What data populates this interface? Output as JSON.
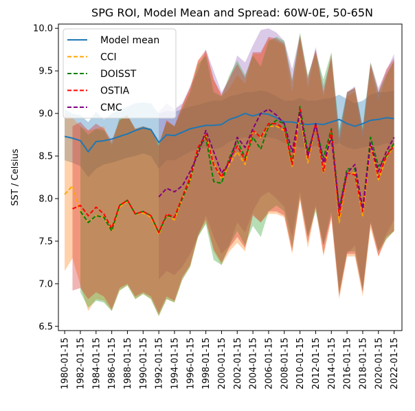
{
  "chart_data": {
    "type": "line",
    "title": "SPG ROI, Model Mean and Spread: 60W-0E, 50-65N",
    "xlabel": "",
    "ylabel": "SST / Celsius",
    "ylim": [
      6.45,
      10.05
    ],
    "xlim": [
      1979.2,
      2023.0
    ],
    "yticks": [
      6.5,
      7.0,
      7.5,
      8.0,
      8.5,
      9.0,
      9.5,
      10.0
    ],
    "ytick_labels": [
      "6.5",
      "7.0",
      "7.5",
      "8.0",
      "8.5",
      "9.0",
      "9.5",
      "10.0"
    ],
    "xticks": [
      1980,
      1982,
      1984,
      1986,
      1988,
      1990,
      1992,
      1994,
      1996,
      1998,
      2000,
      2002,
      2004,
      2006,
      2008,
      2010,
      2012,
      2014,
      2016,
      2018,
      2020,
      2022
    ],
    "xtick_labels": [
      "1980-01-15",
      "1982-01-15",
      "1984-01-15",
      "1986-01-15",
      "1988-01-15",
      "1990-01-15",
      "1992-01-15",
      "1994-01-15",
      "1996-01-15",
      "1998-01-15",
      "2000-01-15",
      "2002-01-15",
      "2004-01-15",
      "2006-01-15",
      "2008-01-15",
      "2010-01-15",
      "2012-01-15",
      "2014-01-15",
      "2016-01-15",
      "2018-01-15",
      "2020-01-15",
      "2022-01-15"
    ],
    "legend": {
      "position": "top-left"
    },
    "series": [
      {
        "name": "Model mean",
        "color": "#1f77b4",
        "style": "solid",
        "band_color": "#1f77b4",
        "x": [
          1980,
          1981,
          1982,
          1983,
          1984,
          1985,
          1986,
          1987,
          1988,
          1989,
          1990,
          1991,
          1992,
          1993,
          1994,
          1995,
          1996,
          1997,
          1998,
          1999,
          2000,
          2001,
          2002,
          2003,
          2004,
          2005,
          2006,
          2007,
          2008,
          2009,
          2010,
          2011,
          2012,
          2013,
          2014,
          2015,
          2016,
          2017,
          2018,
          2019,
          2020,
          2021,
          2022
        ],
        "values": [
          8.73,
          8.71,
          8.68,
          8.55,
          8.67,
          8.68,
          8.7,
          8.73,
          8.76,
          8.8,
          8.83,
          8.81,
          8.66,
          8.75,
          8.74,
          8.78,
          8.82,
          8.84,
          8.86,
          8.86,
          8.87,
          8.93,
          8.96,
          9.0,
          8.97,
          9.0,
          8.99,
          8.95,
          8.9,
          8.9,
          8.88,
          8.87,
          8.88,
          8.87,
          8.9,
          8.93,
          8.88,
          8.85,
          8.88,
          8.92,
          8.93,
          8.95,
          8.94
        ],
        "upper": [
          9.05,
          9.0,
          8.98,
          8.9,
          9.02,
          8.93,
          9.0,
          9.05,
          9.08,
          9.12,
          9.13,
          9.12,
          9.0,
          9.03,
          9.02,
          9.05,
          9.08,
          9.1,
          9.13,
          9.15,
          9.15,
          9.2,
          9.22,
          9.25,
          9.25,
          9.27,
          9.25,
          9.2,
          9.15,
          9.15,
          9.18,
          9.15,
          9.15,
          9.17,
          9.18,
          9.22,
          9.17,
          9.12,
          9.15,
          9.22,
          9.25,
          9.25,
          9.27
        ],
        "lower": [
          8.45,
          8.42,
          8.38,
          8.25,
          8.35,
          8.4,
          8.42,
          8.45,
          8.48,
          8.5,
          8.53,
          8.5,
          8.35,
          8.45,
          8.45,
          8.5,
          8.55,
          8.58,
          8.6,
          8.58,
          8.6,
          8.67,
          8.7,
          8.72,
          8.7,
          8.72,
          8.72,
          8.7,
          8.65,
          8.65,
          8.6,
          8.6,
          8.62,
          8.58,
          8.62,
          8.65,
          8.6,
          8.58,
          8.6,
          8.62,
          8.62,
          8.65,
          8.62
        ]
      },
      {
        "name": "CCI",
        "color": "#ffa500",
        "style": "dashed",
        "band_color": "#ff7f0e",
        "x": [
          1980,
          1981,
          1982,
          1983,
          1984,
          1985,
          1986,
          1987,
          1988,
          1989,
          1990,
          1991,
          1992,
          1993,
          1994,
          1995,
          1996,
          1997,
          1998,
          1999,
          2000,
          2001,
          2002,
          2003,
          2004,
          2005,
          2006,
          2007,
          2008,
          2009,
          2010,
          2011,
          2012,
          2013,
          2014,
          2015,
          2016,
          2017,
          2018,
          2019,
          2020,
          2021,
          2022
        ],
        "values": [
          8.05,
          8.15,
          7.85,
          7.72,
          7.8,
          7.78,
          7.62,
          7.9,
          7.97,
          7.82,
          7.83,
          7.78,
          7.58,
          7.8,
          7.75,
          8.0,
          8.22,
          8.58,
          8.75,
          8.42,
          8.23,
          8.4,
          8.55,
          8.4,
          8.8,
          8.72,
          8.85,
          8.85,
          8.8,
          8.38,
          9.0,
          8.42,
          8.88,
          8.3,
          8.78,
          7.72,
          8.3,
          8.3,
          7.8,
          8.65,
          8.22,
          8.48,
          8.62
        ],
        "upper": [
          9.0,
          8.95,
          8.85,
          8.8,
          8.82,
          8.85,
          8.62,
          8.92,
          8.98,
          8.8,
          8.82,
          8.82,
          8.62,
          8.92,
          8.85,
          9.1,
          9.3,
          9.62,
          9.72,
          9.4,
          9.2,
          9.3,
          9.45,
          9.35,
          9.7,
          9.7,
          9.88,
          9.85,
          9.8,
          9.25,
          9.9,
          9.3,
          9.75,
          9.2,
          9.65,
          8.6,
          9.2,
          9.25,
          8.7,
          9.55,
          9.15,
          9.45,
          9.62
        ],
        "lower": [
          7.15,
          7.3,
          6.98,
          6.68,
          6.82,
          6.8,
          6.68,
          6.92,
          6.98,
          6.82,
          6.88,
          6.82,
          6.62,
          6.82,
          6.78,
          7.05,
          7.2,
          7.55,
          7.72,
          7.38,
          7.22,
          7.38,
          7.48,
          7.38,
          7.82,
          7.72,
          7.82,
          7.82,
          7.78,
          7.35,
          7.98,
          7.42,
          7.88,
          7.32,
          7.75,
          6.82,
          7.32,
          7.32,
          6.85,
          7.65,
          7.32,
          7.52,
          7.62
        ]
      },
      {
        "name": "DOISST",
        "color": "#008000",
        "style": "dashed",
        "band_color": "#2ca02c",
        "x": [
          1982,
          1983,
          1984,
          1985,
          1986,
          1987,
          1988,
          1989,
          1990,
          1991,
          1992,
          1993,
          1994,
          1995,
          1996,
          1997,
          1998,
          1999,
          2000,
          2001,
          2002,
          2003,
          2004,
          2005,
          2006,
          2007,
          2008,
          2009,
          2010,
          2011,
          2012,
          2013,
          2014,
          2015,
          2016,
          2017,
          2018,
          2019,
          2020,
          2021,
          2022
        ],
        "values": [
          7.85,
          7.72,
          7.8,
          7.78,
          7.62,
          7.92,
          7.98,
          7.82,
          7.85,
          7.8,
          7.6,
          7.8,
          7.78,
          8.0,
          8.22,
          8.58,
          8.72,
          8.2,
          8.18,
          8.48,
          8.68,
          8.48,
          8.72,
          8.58,
          8.85,
          8.92,
          8.88,
          8.42,
          9.08,
          8.55,
          8.85,
          8.48,
          8.82,
          7.88,
          8.35,
          8.35,
          7.88,
          8.72,
          8.38,
          8.5,
          8.65
        ],
        "upper": [
          8.85,
          8.75,
          8.82,
          8.8,
          8.65,
          8.95,
          8.98,
          8.82,
          8.85,
          8.82,
          8.65,
          8.9,
          8.85,
          9.05,
          9.25,
          9.58,
          9.68,
          9.25,
          9.2,
          9.45,
          9.62,
          9.45,
          9.68,
          9.55,
          9.85,
          9.9,
          9.85,
          9.4,
          9.95,
          9.45,
          9.72,
          9.4,
          9.72,
          8.8,
          9.25,
          9.3,
          8.85,
          9.6,
          9.25,
          9.45,
          9.62
        ],
        "lower": [
          6.9,
          6.72,
          6.8,
          6.78,
          6.68,
          6.92,
          6.98,
          6.82,
          6.88,
          6.82,
          6.62,
          6.82,
          6.78,
          7.05,
          7.2,
          7.55,
          7.7,
          7.28,
          7.22,
          7.45,
          7.62,
          7.45,
          7.68,
          7.55,
          7.85,
          7.92,
          7.85,
          7.42,
          8.02,
          7.55,
          7.85,
          7.45,
          7.85,
          6.88,
          7.38,
          7.38,
          6.92,
          7.72,
          7.38,
          7.52,
          7.62
        ]
      },
      {
        "name": "OSTIA",
        "color": "#ff0000",
        "style": "dashed",
        "band_color": "#d62728",
        "x": [
          1981,
          1982,
          1983,
          1984,
          1985,
          1986,
          1987,
          1988,
          1989,
          1990,
          1991,
          1992,
          1993,
          1994,
          1995,
          1996,
          1997,
          1998,
          1999,
          2000,
          2001,
          2002,
          2003,
          2004,
          2005,
          2006,
          2007,
          2008,
          2009,
          2010,
          2011,
          2012,
          2013,
          2014,
          2015,
          2016,
          2017,
          2018,
          2019,
          2020,
          2021,
          2022
        ],
        "values": [
          7.88,
          7.92,
          7.8,
          7.9,
          7.82,
          7.65,
          7.92,
          7.98,
          7.82,
          7.85,
          7.8,
          7.6,
          7.82,
          7.78,
          8.02,
          8.25,
          8.6,
          8.75,
          8.4,
          8.25,
          8.45,
          8.62,
          8.45,
          8.8,
          8.72,
          8.88,
          8.88,
          8.82,
          8.4,
          9.05,
          8.48,
          8.88,
          8.32,
          8.8,
          7.8,
          8.3,
          8.28,
          7.85,
          8.65,
          8.25,
          8.5,
          8.62
        ],
        "upper": [
          8.85,
          8.9,
          8.8,
          8.88,
          8.82,
          8.68,
          8.92,
          8.98,
          8.82,
          8.85,
          8.82,
          8.62,
          8.92,
          8.85,
          9.1,
          9.3,
          9.62,
          9.75,
          9.4,
          9.22,
          9.42,
          9.58,
          9.42,
          9.72,
          9.72,
          9.9,
          9.88,
          9.82,
          9.38,
          9.92,
          9.42,
          9.75,
          9.25,
          9.7,
          8.7,
          9.25,
          9.3,
          8.8,
          9.58,
          9.25,
          9.52,
          9.65
        ],
        "lower": [
          6.92,
          6.95,
          6.82,
          6.9,
          6.85,
          6.7,
          6.95,
          7.0,
          6.85,
          6.9,
          6.85,
          6.65,
          6.85,
          6.8,
          7.08,
          7.22,
          7.58,
          7.75,
          7.4,
          7.25,
          7.42,
          7.55,
          7.42,
          7.8,
          7.72,
          7.85,
          7.85,
          7.8,
          7.38,
          8.0,
          7.48,
          7.9,
          7.35,
          7.8,
          6.85,
          7.35,
          7.35,
          6.9,
          7.7,
          7.32,
          7.55,
          7.62
        ]
      },
      {
        "name": "CMC",
        "color": "#800080",
        "style": "dashed",
        "band_color": "#9467bd",
        "x": [
          1992,
          1993,
          1994,
          1995,
          1996,
          1997,
          1998,
          1999,
          2000,
          2001,
          2002,
          2003,
          2004,
          2005,
          2006,
          2007,
          2008,
          2009,
          2010,
          2011,
          2012,
          2013,
          2014,
          2015,
          2016,
          2017,
          2018,
          2019,
          2020,
          2021,
          2022
        ],
        "values": [
          8.02,
          8.12,
          8.08,
          8.15,
          8.32,
          8.52,
          8.8,
          8.55,
          8.3,
          8.42,
          8.72,
          8.6,
          8.82,
          9.0,
          9.05,
          8.98,
          8.88,
          8.55,
          9.02,
          8.5,
          8.88,
          8.42,
          8.72,
          7.88,
          8.3,
          8.4,
          7.88,
          8.65,
          8.32,
          8.55,
          8.72
        ],
        "upper": [
          9.02,
          9.12,
          9.05,
          9.12,
          9.32,
          9.5,
          9.75,
          9.5,
          9.25,
          9.4,
          9.68,
          9.6,
          9.8,
          9.98,
          10.0,
          9.95,
          9.85,
          9.52,
          9.92,
          9.4,
          9.78,
          9.32,
          9.65,
          8.8,
          9.25,
          9.32,
          8.82,
          9.6,
          9.3,
          9.5,
          9.7
        ],
        "lower": [
          7.05,
          7.15,
          7.1,
          7.2,
          7.35,
          7.55,
          7.8,
          7.55,
          7.35,
          7.45,
          7.72,
          7.6,
          7.85,
          8.02,
          8.08,
          8.0,
          7.9,
          7.55,
          8.08,
          7.55,
          7.92,
          7.45,
          7.78,
          6.92,
          7.35,
          7.45,
          6.92,
          7.72,
          7.38,
          7.58,
          7.75
        ]
      }
    ]
  }
}
